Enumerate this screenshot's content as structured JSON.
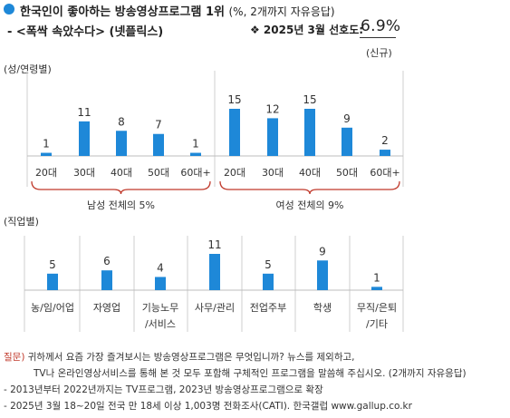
{
  "header": {
    "title": "한국인이 좋아하는 방송영상프로그램 1위",
    "title_note": "(%, 2개까지 자유응답)",
    "subtitle": "- <폭싹 속았수다> (넷플릭스)",
    "preference_label": "❖ 2025년 3월 선호도:",
    "preference_value": "6.9%",
    "preference_note": "(신규)"
  },
  "chart_data": [
    {
      "type": "bar",
      "axis_title": "(성/연령별)",
      "groups": [
        {
          "label": "남성 전체의 5%",
          "categories": [
            "20대",
            "30대",
            "40대",
            "50대",
            "60대+"
          ],
          "values": [
            1,
            11,
            8,
            7,
            1
          ]
        },
        {
          "label": "여성 전체의 9%",
          "categories": [
            "20대",
            "30대",
            "40대",
            "50대",
            "60대+"
          ],
          "values": [
            15,
            12,
            15,
            9,
            2
          ]
        }
      ],
      "ylim": [
        0,
        15
      ],
      "color": "#1e88d8"
    },
    {
      "type": "bar",
      "axis_title": "(직업별)",
      "categories": [
        "농/임/어업",
        "자영업",
        "기능노무\n/서비스",
        "사무/관리",
        "전업주부",
        "학생",
        "무직/은퇴\n/기타"
      ],
      "values": [
        5,
        6,
        4,
        11,
        5,
        9,
        1
      ],
      "ylim": [
        0,
        11
      ],
      "color": "#1e88d8"
    }
  ],
  "footnotes": {
    "q_label": "질문)",
    "q_line1": " 귀하께서 요즘 가장 즐겨보시는 방송영상프로그램은 무엇입니까? 뉴스를 제외하고,",
    "q_line2": "TV나 온라인영상서비스를 통해 본 것 모두 포함해 구체적인 프로그램을 말씀해 주십시오. (2개까지 자유응답)",
    "note1": "- 2013년부터 2022년까지는 TV프로그램, 2023년 방송영상프로그램으로 확장",
    "note2": "- 2025년 3월 18~20일 전국 만 18세 이상 1,003명 전화조사(CATI). 한국갤럽 www.gallup.co.kr"
  }
}
